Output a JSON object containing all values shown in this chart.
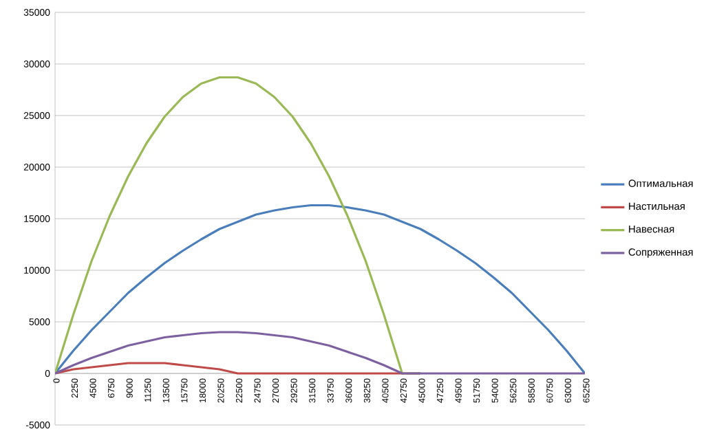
{
  "chart_data": {
    "type": "line",
    "categories": [
      "0",
      "2250",
      "4500",
      "6750",
      "9000",
      "11250",
      "13500",
      "15750",
      "18000",
      "20250",
      "22500",
      "24750",
      "27000",
      "29250",
      "31500",
      "33750",
      "36000",
      "38250",
      "40500",
      "42750",
      "45000",
      "47250",
      "49500",
      "51750",
      "54000",
      "56250",
      "58500",
      "60750",
      "63000",
      "65250"
    ],
    "series": [
      {
        "name": "Оптимальная",
        "color": "#4a7ebb",
        "values": [
          0,
          2200,
          4200,
          6000,
          7800,
          9300,
          10700,
          11900,
          13000,
          14000,
          14700,
          15400,
          15800,
          16100,
          16300,
          16300,
          16100,
          15800,
          15400,
          14700,
          14000,
          13000,
          11900,
          10700,
          9300,
          7800,
          6000,
          4200,
          2200,
          0
        ]
      },
      {
        "name": "Настильная",
        "color": "#be4b48",
        "values": [
          0,
          400,
          600,
          800,
          1000,
          1000,
          1000,
          800,
          600,
          400,
          0,
          0,
          0,
          0,
          0,
          0,
          0,
          0,
          0,
          0,
          0,
          null,
          null,
          null,
          null,
          null,
          null,
          null,
          null,
          null
        ]
      },
      {
        "name": "Навесная",
        "color": "#98b954",
        "values": [
          0,
          5700,
          10900,
          15300,
          19100,
          22300,
          24900,
          26800,
          28100,
          28700,
          28700,
          28100,
          26800,
          24900,
          22300,
          19100,
          15300,
          10900,
          5700,
          0,
          0,
          null,
          null,
          null,
          null,
          null,
          null,
          null,
          null,
          null
        ]
      },
      {
        "name": "Сопряженная",
        "color": "#7d60a0",
        "values": [
          0,
          800,
          1500,
          2100,
          2700,
          3100,
          3500,
          3700,
          3900,
          4000,
          4000,
          3900,
          3700,
          3500,
          3100,
          2700,
          2100,
          1500,
          800,
          0,
          0,
          0,
          0,
          0,
          0,
          0,
          0,
          0,
          0,
          0
        ]
      }
    ],
    "ylim": [
      -5000,
      35000
    ],
    "yticks": [
      -5000,
      0,
      5000,
      10000,
      15000,
      20000,
      25000,
      30000,
      35000
    ],
    "grid": "y",
    "legend": "right",
    "marker": "none",
    "line_style": "solid"
  }
}
